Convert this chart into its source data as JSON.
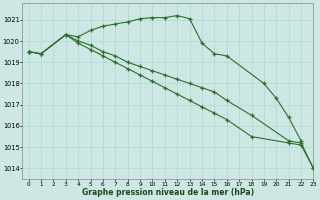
{
  "xlabel": "Graphe pression niveau de la mer (hPa)",
  "background_color": "#cde8e4",
  "grid_color": "#b0d8d0",
  "line_color": "#2d6e2d",
  "ylim": [
    1013.5,
    1021.8
  ],
  "xlim": [
    -0.5,
    23
  ],
  "yticks": [
    1014,
    1015,
    1016,
    1017,
    1018,
    1019,
    1020,
    1021
  ],
  "xticks": [
    0,
    1,
    2,
    3,
    4,
    5,
    6,
    7,
    8,
    9,
    10,
    11,
    12,
    13,
    14,
    15,
    16,
    17,
    18,
    19,
    20,
    21,
    22,
    23
  ],
  "series": [
    {
      "x": [
        0,
        1,
        3,
        4,
        5,
        6,
        7,
        8,
        9,
        10,
        11,
        12,
        13,
        14,
        15,
        16,
        19,
        20,
        21,
        22
      ],
      "y": [
        1019.5,
        1019.4,
        1020.3,
        1020.2,
        1020.5,
        1020.7,
        1020.8,
        1020.9,
        1021.05,
        1021.1,
        1021.1,
        1021.2,
        1021.05,
        1019.9,
        1019.4,
        1019.3,
        1018.0,
        1017.3,
        1016.4,
        1015.3
      ]
    },
    {
      "x": [
        0,
        1,
        3,
        4,
        5,
        6,
        7,
        8,
        9,
        10,
        11,
        12,
        13,
        14,
        15,
        16,
        18,
        21,
        22,
        23
      ],
      "y": [
        1019.5,
        1019.4,
        1020.3,
        1020.0,
        1019.8,
        1019.5,
        1019.3,
        1019.0,
        1018.8,
        1018.6,
        1018.4,
        1018.2,
        1018.0,
        1017.8,
        1017.6,
        1017.2,
        1016.5,
        1015.3,
        1015.2,
        1014.0
      ]
    },
    {
      "x": [
        0,
        1,
        3,
        4,
        5,
        6,
        7,
        8,
        9,
        10,
        11,
        12,
        13,
        14,
        15,
        16,
        18,
        21,
        22,
        23
      ],
      "y": [
        1019.5,
        1019.4,
        1020.3,
        1019.9,
        1019.6,
        1019.3,
        1019.0,
        1018.7,
        1018.4,
        1018.1,
        1017.8,
        1017.5,
        1017.2,
        1016.9,
        1016.6,
        1016.3,
        1015.5,
        1015.2,
        1015.1,
        1014.0
      ]
    }
  ]
}
